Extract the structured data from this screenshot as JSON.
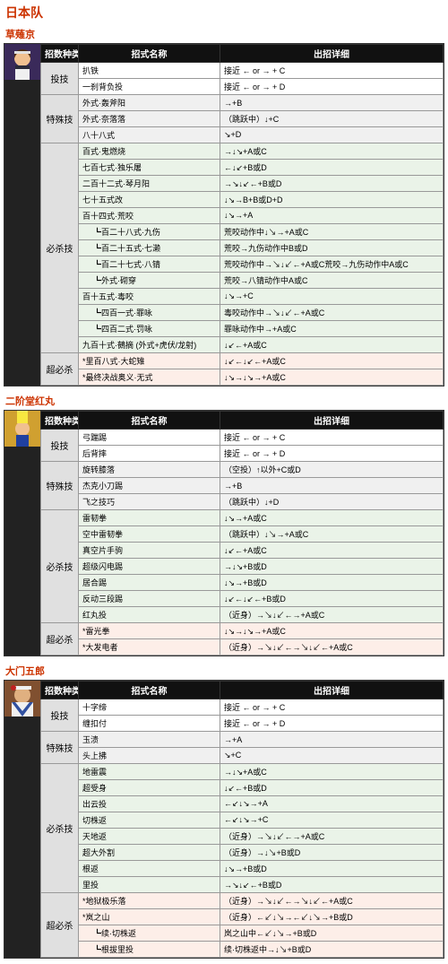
{
  "team_title": "日本队",
  "headers": {
    "category": "招数种类",
    "name": "招式名称",
    "command": "出招详细"
  },
  "row_colors": {
    "throw": "#ffffff",
    "special": "#f0f0f0",
    "hissatsu": "#eaf3e8",
    "super": "#fdeee8",
    "cat": "#e0e0e0",
    "header_bg": "#111111",
    "header_fg": "#ffffff",
    "border": "#999999",
    "title_color": "#cc3300"
  },
  "characters": [
    {
      "name": "草薙京",
      "portrait_svg": "kyo",
      "groups": [
        {
          "category": "投技",
          "rows": [
            {
              "name": "扒铁",
              "cmd": "接近 ← or → + C"
            },
            {
              "name": "一刹背负投",
              "cmd": "接近 ← or → + D"
            }
          ]
        },
        {
          "category": "特殊技",
          "rows": [
            {
              "name": "外式·轰斧阳",
              "cmd": "→+B"
            },
            {
              "name": "外式·奈落落",
              "cmd": "（跳跃中）↓+C"
            },
            {
              "name": "八十八式",
              "cmd": "↘+D"
            }
          ]
        },
        {
          "category": "必杀技",
          "rows": [
            {
              "name": "百式·鬼燃烧",
              "cmd": "→↓↘+A或C"
            },
            {
              "name": "七百七式·独乐屠",
              "cmd": "←↓↙+B或D"
            },
            {
              "name": "二百十二式·琴月阳",
              "cmd": "→↘↓↙←+B或D"
            },
            {
              "name": "七十五式改",
              "cmd": "↓↘→B+B或D+D"
            },
            {
              "name": "百十四式·荒咬",
              "cmd": "↓↘→+A"
            },
            {
              "name": "┗百二十八式·九伤",
              "cmd": "荒咬动作中↓↘→+A或C",
              "indent": true
            },
            {
              "name": "┗百二十五式·七濑",
              "cmd": "荒咬→九伤动作中B或D",
              "indent": true
            },
            {
              "name": "┗百二十七式·八锖",
              "cmd": "荒咬动作中→↘↓↙←+A或C荒咬→九伤动作中A或C",
              "indent": true
            },
            {
              "name": "┗外式·砌穿",
              "cmd": "荒咬→八锖动作中A或C",
              "indent": true
            },
            {
              "name": "百十五式·毒咬",
              "cmd": "↓↘→+C"
            },
            {
              "name": "┗四百一式·罪咏",
              "cmd": "毒咬动作中→↘↓↙←+A或C",
              "indent": true
            },
            {
              "name": "┗四百二式·罚咏",
              "cmd": "罪咏动作中→+A或C",
              "indent": true
            },
            {
              "name": "九百十式·鵺摘 (外式+虎伏/龙射)",
              "cmd": "↓↙←+A或C"
            }
          ]
        },
        {
          "category": "超必杀",
          "rows": [
            {
              "name": "*里百八式·大蛇雉",
              "cmd": "↓↙←↓↙←+A或C"
            },
            {
              "name": "*最终决战奥义·无式",
              "cmd": "↓↘→↓↘→+A或C"
            }
          ]
        }
      ]
    },
    {
      "name": "二阶堂红丸",
      "portrait_svg": "benimaru",
      "groups": [
        {
          "category": "投技",
          "rows": [
            {
              "name": "弓踹踢",
              "cmd": "接近 ← or → + C"
            },
            {
              "name": "后背摔",
              "cmd": "接近 ← or → + D"
            }
          ]
        },
        {
          "category": "特殊技",
          "rows": [
            {
              "name": "旋转膝落",
              "cmd": "（空投）↑以外+C或D"
            },
            {
              "name": "杰克小刀踢",
              "cmd": "→+B"
            },
            {
              "name": "飞之技巧",
              "cmd": "（跳跃中）↓+D"
            }
          ]
        },
        {
          "category": "必杀技",
          "rows": [
            {
              "name": "雷韧拳",
              "cmd": "↓↘→+A或C"
            },
            {
              "name": "空中雷韧拳",
              "cmd": "（跳跃中）↓↘→+A或C"
            },
            {
              "name": "真空片手驹",
              "cmd": "↓↙←+A或C"
            },
            {
              "name": "超级闪电踢",
              "cmd": "→↓↘+B或D"
            },
            {
              "name": "居合踢",
              "cmd": "↓↘→+B或D"
            },
            {
              "name": "反动三段踢",
              "cmd": "↓↙←↓↙←+B或D"
            },
            {
              "name": "红丸投",
              "cmd": "（近身）→↘↓↙←→+A或C"
            }
          ]
        },
        {
          "category": "超必杀",
          "rows": [
            {
              "name": "*雷光拳",
              "cmd": "↓↘→↓↘→+A或C"
            },
            {
              "name": "*大发电者",
              "cmd": "（近身）→↘↓↙←→↘↓↙←+A或C"
            }
          ]
        }
      ]
    },
    {
      "name": "大门五郎",
      "portrait_svg": "daimon",
      "groups": [
        {
          "category": "投技",
          "rows": [
            {
              "name": "十字缔",
              "cmd": "接近 ← or → + C"
            },
            {
              "name": "缠扣付",
              "cmd": "接近 ← or → + D"
            }
          ]
        },
        {
          "category": "特殊技",
          "rows": [
            {
              "name": "玉溃",
              "cmd": "→+A"
            },
            {
              "name": "头上拂",
              "cmd": "↘+C"
            }
          ]
        },
        {
          "category": "必杀技",
          "rows": [
            {
              "name": "地雷震",
              "cmd": "→↓↘+A或C"
            },
            {
              "name": "超受身",
              "cmd": "↓↙←+B或D"
            },
            {
              "name": "出云投",
              "cmd": "←↙↓↘→+A"
            },
            {
              "name": "切株返",
              "cmd": "←↙↓↘→+C"
            },
            {
              "name": "天地返",
              "cmd": "（近身）→↘↓↙←→+A或C"
            },
            {
              "name": "超大外割",
              "cmd": "（近身）→↓↘+B或D"
            },
            {
              "name": "根返",
              "cmd": "↓↘→+B或D"
            },
            {
              "name": "里投",
              "cmd": "→↘↓↙←+B或D"
            }
          ]
        },
        {
          "category": "超必杀",
          "rows": [
            {
              "name": "*地狱极乐落",
              "cmd": "（近身）→↘↓↙←→↘↓↙←+A或C"
            },
            {
              "name": "*岚之山",
              "cmd": "（近身）←↙↓↘→←↙↓↘→+B或D"
            },
            {
              "name": "┗续·切株返",
              "cmd": "岚之山中←↙↓↘→+B或D",
              "indent": true
            },
            {
              "name": "┗根拔里投",
              "cmd": "续·切株返中→↓↘+B或D",
              "indent": true
            }
          ]
        }
      ]
    }
  ]
}
